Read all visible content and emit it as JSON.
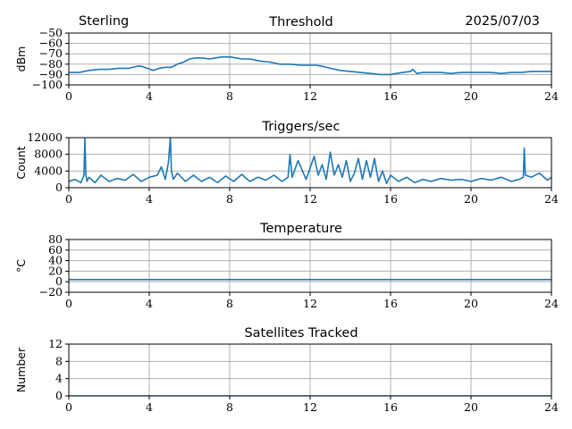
{
  "header": {
    "station": "Sterling",
    "date": "2025/07/03"
  },
  "colors": {
    "series": "#1f77b4",
    "grid": "#b0b0b0"
  },
  "chart_data": [
    {
      "type": "line",
      "title": "Threshold",
      "xlabel": "",
      "ylabel": "dBm",
      "xlim": [
        0,
        24
      ],
      "ylim": [
        -100,
        -50
      ],
      "xticks": [
        "0",
        "4",
        "8",
        "12",
        "16",
        "20",
        "24"
      ],
      "yticks": [
        "−100",
        "−90",
        "−80",
        "−70",
        "−60",
        "−50"
      ],
      "grid": true,
      "x": [
        0,
        0.5,
        1,
        1.5,
        2,
        2.5,
        3,
        3.4,
        3.6,
        3.9,
        4.2,
        4.5,
        4.8,
        5.1,
        5.4,
        5.7,
        6,
        6.3,
        6.6,
        7,
        7.3,
        7.6,
        7.8,
        8,
        8.3,
        8.6,
        9,
        9.5,
        10,
        10.5,
        11,
        11.5,
        12,
        12.3,
        12.6,
        13,
        13.5,
        14,
        14.5,
        15,
        15.5,
        16,
        16.3,
        16.6,
        17,
        17.1,
        17.3,
        17.6,
        18,
        18.5,
        19,
        19.5,
        20,
        20.5,
        21,
        21.5,
        22,
        22.5,
        23,
        23.5,
        24
      ],
      "y": [
        -88,
        -88,
        -86,
        -85,
        -85,
        -84,
        -84,
        -82,
        -82,
        -84,
        -86,
        -84,
        -83,
        -83,
        -80,
        -78,
        -75,
        -74,
        -74,
        -75,
        -74,
        -73,
        -73,
        -73,
        -74,
        -75,
        -75,
        -77,
        -78,
        -80,
        -80,
        -81,
        -81,
        -81,
        -82,
        -84,
        -86,
        -87,
        -88,
        -89,
        -90,
        -90,
        -89,
        -88,
        -87,
        -85,
        -89,
        -88,
        -88,
        -88,
        -89,
        -88,
        -88,
        -88,
        -88,
        -89,
        -88,
        -88,
        -87,
        -87,
        -87
      ]
    },
    {
      "type": "line",
      "title": "Triggers/sec",
      "xlabel": "",
      "ylabel": "Count",
      "xlim": [
        0,
        24
      ],
      "ylim": [
        0,
        12000
      ],
      "xticks": [
        "0",
        "4",
        "8",
        "12",
        "16",
        "20",
        "24"
      ],
      "yticks": [
        "0",
        "4000",
        "8000",
        "12000"
      ],
      "grid": true,
      "x": [
        0,
        0.3,
        0.6,
        0.75,
        0.8,
        0.85,
        0.9,
        1,
        1.3,
        1.6,
        2,
        2.4,
        2.8,
        3.2,
        3.6,
        4,
        4.4,
        4.6,
        4.8,
        4.95,
        5.05,
        5.1,
        5.2,
        5.4,
        5.8,
        6.2,
        6.6,
        7,
        7.4,
        7.8,
        8.2,
        8.6,
        9,
        9.4,
        9.8,
        10.2,
        10.6,
        10.9,
        11,
        11.1,
        11.4,
        11.8,
        12.2,
        12.4,
        12.6,
        12.8,
        13,
        13.2,
        13.4,
        13.6,
        13.8,
        14,
        14.2,
        14.4,
        14.6,
        14.8,
        15,
        15.2,
        15.4,
        15.6,
        15.8,
        16,
        16.4,
        16.8,
        17.2,
        17.6,
        18,
        18.5,
        19,
        19.5,
        20,
        20.5,
        21,
        21.5,
        22,
        22.4,
        22.6,
        22.65,
        22.7,
        23,
        23.4,
        23.8,
        24
      ],
      "y": [
        1500,
        2000,
        1200,
        3000,
        11800,
        3000,
        1500,
        2500,
        1200,
        3000,
        1500,
        2200,
        1800,
        3200,
        1500,
        2500,
        3000,
        5000,
        2000,
        6000,
        12000,
        4000,
        2000,
        3500,
        1500,
        3000,
        1500,
        2500,
        1200,
        2800,
        1500,
        3200,
        1500,
        2500,
        1800,
        3000,
        1500,
        2500,
        8000,
        2500,
        6500,
        2000,
        7500,
        3000,
        5500,
        2000,
        8500,
        3000,
        5500,
        2500,
        6500,
        1500,
        3500,
        7000,
        2000,
        6500,
        2500,
        7000,
        1500,
        4000,
        1000,
        3000,
        1500,
        2500,
        1200,
        2000,
        1500,
        2200,
        1800,
        2000,
        1500,
        2200,
        1800,
        2500,
        1500,
        2000,
        2500,
        9500,
        3000,
        2500,
        3500,
        1800,
        2500
      ]
    },
    {
      "type": "line",
      "title": "Temperature",
      "xlabel": "",
      "ylabel": "°C",
      "xlim": [
        0,
        24
      ],
      "ylim": [
        -20,
        80
      ],
      "xticks": [
        "0",
        "4",
        "8",
        "12",
        "16",
        "20",
        "24"
      ],
      "yticks": [
        "−20",
        "0",
        "20",
        "40",
        "60",
        "80"
      ],
      "grid": true,
      "x": [
        0,
        24
      ],
      "y": [
        4,
        4
      ]
    },
    {
      "type": "line",
      "title": "Satellites Tracked",
      "xlabel": "",
      "ylabel": "Number",
      "xlim": [
        0,
        24
      ],
      "ylim": [
        0,
        12
      ],
      "xticks": [
        "0",
        "4",
        "8",
        "12",
        "16",
        "20",
        "24"
      ],
      "yticks": [
        "0",
        "4",
        "8",
        "12"
      ],
      "grid": true,
      "x": [
        0,
        24
      ],
      "y": [
        0,
        0
      ]
    }
  ]
}
